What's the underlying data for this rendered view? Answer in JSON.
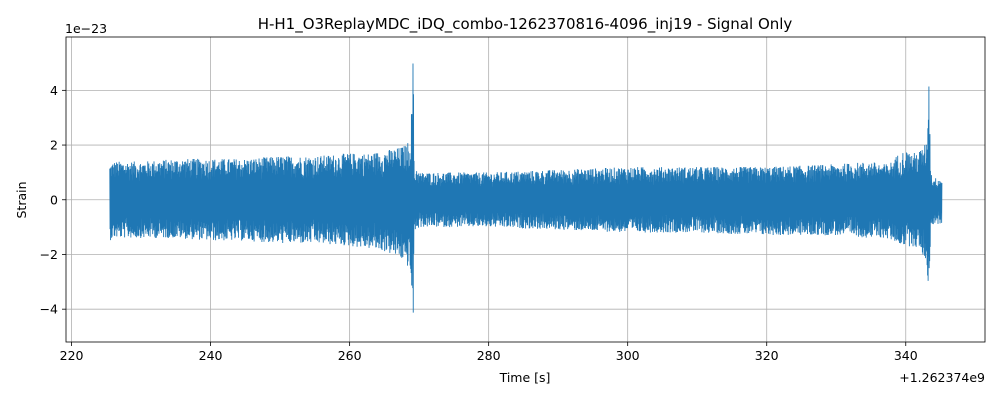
{
  "chart_data": {
    "type": "line",
    "title": "H-H1_O3ReplayMDC_iDQ_combo-1262370816-4096_inj19 - Signal Only",
    "xlabel": "Time [s]",
    "ylabel": "Strain",
    "x_offset_label": "+1.262374e9",
    "y_scale_label": "1e−23",
    "xlim": [
      219.2,
      351.4
    ],
    "ylim": [
      -5.2,
      5.95
    ],
    "x_ticks": [
      220,
      240,
      260,
      280,
      300,
      320,
      340
    ],
    "x_tick_labels": [
      "220",
      "240",
      "260",
      "280",
      "300",
      "320",
      "340"
    ],
    "y_ticks": [
      -4,
      -2,
      0,
      2,
      4
    ],
    "y_tick_labels": [
      "−4",
      "−2",
      "0",
      "2",
      "4"
    ],
    "grid": true,
    "series_color": "#1f77b4",
    "series": [
      {
        "envelope_x": [
          225.5,
          226,
          230,
          235,
          240,
          245,
          250,
          255,
          260,
          263,
          265,
          267,
          268,
          268.7,
          269.0,
          269.15,
          269.3,
          269.6,
          270,
          275,
          280,
          290,
          300,
          310,
          320,
          330,
          335,
          337,
          338,
          339,
          340,
          341,
          342,
          343,
          343.35,
          343.6,
          344,
          345.2
        ],
        "envelope_upper": [
          1.3,
          1.4,
          1.4,
          1.5,
          1.5,
          1.5,
          1.6,
          1.6,
          1.7,
          1.7,
          1.8,
          1.9,
          2.0,
          2.2,
          3.8,
          5.45,
          0.9,
          1.2,
          1.0,
          1.0,
          1.0,
          1.1,
          1.2,
          1.2,
          1.2,
          1.3,
          1.4,
          1.3,
          1.4,
          1.7,
          1.8,
          1.7,
          1.8,
          2.1,
          4.75,
          1.0,
          0.8,
          0.8
        ],
        "envelope_lower": [
          -1.5,
          -1.4,
          -1.4,
          -1.4,
          -1.5,
          -1.5,
          -1.6,
          -1.6,
          -1.7,
          -1.8,
          -1.9,
          -2.1,
          -2.3,
          -2.6,
          -3.6,
          -4.7,
          -1.0,
          -1.2,
          -1.0,
          -1.0,
          -1.0,
          -1.1,
          -1.2,
          -1.2,
          -1.3,
          -1.3,
          -1.4,
          -1.4,
          -1.5,
          -1.6,
          -1.7,
          -1.7,
          -1.8,
          -2.3,
          -3.55,
          -1.0,
          -0.9,
          -0.9
        ]
      }
    ]
  }
}
